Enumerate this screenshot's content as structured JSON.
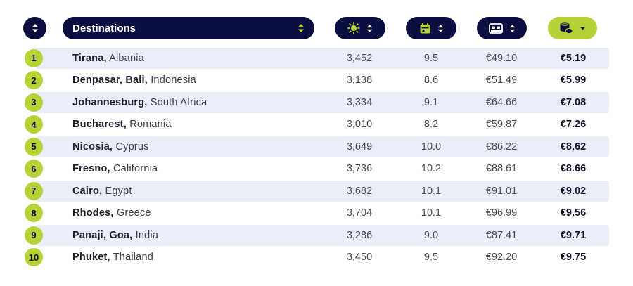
{
  "header": {
    "destinations_label": "Destinations",
    "columns": [
      {
        "icon": "sun-icon"
      },
      {
        "icon": "calendar-icon"
      },
      {
        "icon": "bed-icon"
      },
      {
        "icon": "coins-icon"
      }
    ]
  },
  "rows": [
    {
      "rank": "1",
      "city": "Tirana,",
      "country": "Albania",
      "sunshine": "3,452",
      "days": "9.5",
      "hotel": "€49.10",
      "cost": "€5.19"
    },
    {
      "rank": "2",
      "city": "Denpasar, Bali,",
      "country": "Indonesia",
      "sunshine": "3,138",
      "days": "8.6",
      "hotel": "€51.49",
      "cost": "€5.99"
    },
    {
      "rank": "3",
      "city": "Johannesburg,",
      "country": "South Africa",
      "sunshine": "3,334",
      "days": "9.1",
      "hotel": "€64.66",
      "cost": "€7.08"
    },
    {
      "rank": "4",
      "city": "Bucharest,",
      "country": "Romania",
      "sunshine": "3,010",
      "days": "8.2",
      "hotel": "€59.87",
      "cost": "€7.26"
    },
    {
      "rank": "5",
      "city": "Nicosia,",
      "country": "Cyprus",
      "sunshine": "3,649",
      "days": "10.0",
      "hotel": "€86.22",
      "cost": "€8.62"
    },
    {
      "rank": "6",
      "city": "Fresno,",
      "country": "California",
      "sunshine": "3,736",
      "days": "10.2",
      "hotel": "€88.61",
      "cost": "€8.66"
    },
    {
      "rank": "7",
      "city": "Cairo,",
      "country": "Egypt",
      "sunshine": "3,682",
      "days": "10.1",
      "hotel": "€91.01",
      "cost": "€9.02"
    },
    {
      "rank": "8",
      "city": "Rhodes,",
      "country": "Greece",
      "sunshine": "3,704",
      "days": "10.1",
      "hotel": "€96.99",
      "cost": "€9.56"
    },
    {
      "rank": "9",
      "city": "Panaji, Goa,",
      "country": "India",
      "sunshine": "3,286",
      "days": "9.0",
      "hotel": "€87.41",
      "cost": "€9.71"
    },
    {
      "rank": "10",
      "city": "Phuket,",
      "country": "Thailand",
      "sunshine": "3,450",
      "days": "9.5",
      "hotel": "€92.20",
      "cost": "€9.75"
    }
  ],
  "colors": {
    "navy": "#0b0f3f",
    "lime": "#b5d236",
    "row_alt": "#e9eef9"
  }
}
